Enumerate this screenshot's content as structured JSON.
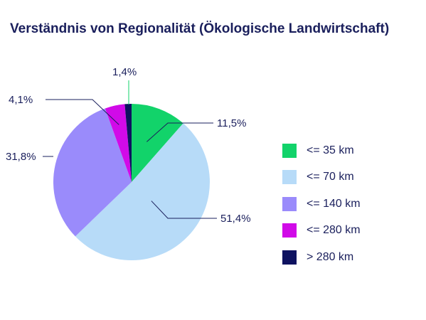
{
  "chart_data": {
    "type": "pie",
    "title": "Verständnis von Regionalität (Ökologische Landwirtschaft)",
    "categories": [
      "<= 35 km",
      "<= 70 km",
      "<= 140 km",
      "<= 280 km",
      "> 280 km"
    ],
    "values": [
      11.5,
      51.4,
      31.8,
      4.1,
      1.4
    ],
    "data_labels": [
      "11,5%",
      "51,4%",
      "31,8%",
      "4,1%",
      "1,4%"
    ],
    "colors": [
      "#12d36a",
      "#b7dbf8",
      "#9a8bfb",
      "#d10ae8",
      "#0e1260"
    ],
    "legend_position": "right"
  }
}
